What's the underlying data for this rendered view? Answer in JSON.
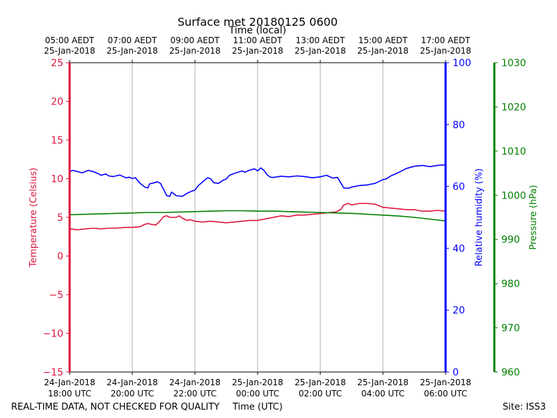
{
  "chart_data": {
    "type": "line",
    "title": "Surface met 20180125 0600",
    "top_xlabel": "Time (local)",
    "xlabel": "Time (UTC)",
    "x_range_hours": [
      0,
      12
    ],
    "top_ticks": [
      {
        "h": 0,
        "l1": "05:00 AEDT",
        "l2": "25-Jan-2018"
      },
      {
        "h": 2,
        "l1": "07:00 AEDT",
        "l2": "25-Jan-2018"
      },
      {
        "h": 4,
        "l1": "09:00 AEDT",
        "l2": "25-Jan-2018"
      },
      {
        "h": 6,
        "l1": "11:00 AEDT",
        "l2": "25-Jan-2018"
      },
      {
        "h": 8,
        "l1": "13:00 AEDT",
        "l2": "25-Jan-2018"
      },
      {
        "h": 10,
        "l1": "15:00 AEDT",
        "l2": "25-Jan-2018"
      },
      {
        "h": 12,
        "l1": "17:00 AEDT",
        "l2": "25-Jan-2018"
      }
    ],
    "bottom_ticks": [
      {
        "h": 0,
        "l1": "24-Jan-2018",
        "l2": "18:00 UTC"
      },
      {
        "h": 2,
        "l1": "24-Jan-2018",
        "l2": "20:00 UTC"
      },
      {
        "h": 4,
        "l1": "24-Jan-2018",
        "l2": "22:00 UTC"
      },
      {
        "h": 6,
        "l1": "25-Jan-2018",
        "l2": "00:00 UTC"
      },
      {
        "h": 8,
        "l1": "25-Jan-2018",
        "l2": "02:00 UTC"
      },
      {
        "h": 10,
        "l1": "25-Jan-2018",
        "l2": "04:00 UTC"
      },
      {
        "h": 12,
        "l1": "25-Jan-2018",
        "l2": "06:00 UTC"
      }
    ],
    "grid": "vertical",
    "axes": {
      "temperature": {
        "label": "Temperature (Celsius)",
        "min": -15,
        "max": 25,
        "ticks": [
          -15,
          -10,
          -5,
          0,
          5,
          10,
          15,
          20,
          25
        ],
        "tick_labels": [
          "−15",
          "−10",
          "−5",
          "0",
          "5",
          "10",
          "15",
          "20",
          "25"
        ],
        "color": "#dc143c",
        "side": "left"
      },
      "humidity": {
        "label": "Relative humidity (%)",
        "min": 0,
        "max": 100,
        "ticks": [
          0,
          20,
          40,
          60,
          80,
          100
        ],
        "tick_labels": [
          "0",
          "20",
          "40",
          "60",
          "80",
          "100"
        ],
        "color": "#0000ff",
        "side": "right"
      },
      "pressure": {
        "label": "Pressure (hPa)",
        "min": 960,
        "max": 1030,
        "ticks": [
          960,
          970,
          980,
          990,
          1000,
          1010,
          1020,
          1030
        ],
        "tick_labels": [
          "960",
          "970",
          "980",
          "990",
          "1000",
          "1010",
          "1020",
          "1030"
        ],
        "color": "#008000",
        "side": "far-right"
      }
    },
    "series": [
      {
        "key": "temperature",
        "color": "#dc143c",
        "points": [
          [
            0,
            3.5
          ],
          [
            0.25,
            3.4
          ],
          [
            0.5,
            3.5
          ],
          [
            0.75,
            3.6
          ],
          [
            1.0,
            3.5
          ],
          [
            1.25,
            3.6
          ],
          [
            1.5,
            3.6
          ],
          [
            1.75,
            3.7
          ],
          [
            2.0,
            3.7
          ],
          [
            2.25,
            3.8
          ],
          [
            2.4,
            4.1
          ],
          [
            2.5,
            4.2
          ],
          [
            2.6,
            4.1
          ],
          [
            2.75,
            4.0
          ],
          [
            2.9,
            4.6
          ],
          [
            3.0,
            5.1
          ],
          [
            3.1,
            5.2
          ],
          [
            3.2,
            5.0
          ],
          [
            3.4,
            5.0
          ],
          [
            3.5,
            5.2
          ],
          [
            3.6,
            4.9
          ],
          [
            3.75,
            4.6
          ],
          [
            3.85,
            4.7
          ],
          [
            4.0,
            4.5
          ],
          [
            4.25,
            4.4
          ],
          [
            4.5,
            4.5
          ],
          [
            4.75,
            4.4
          ],
          [
            5.0,
            4.3
          ],
          [
            5.25,
            4.4
          ],
          [
            5.5,
            4.5
          ],
          [
            5.75,
            4.6
          ],
          [
            6.0,
            4.6
          ],
          [
            6.25,
            4.8
          ],
          [
            6.5,
            5.0
          ],
          [
            6.75,
            5.2
          ],
          [
            7.0,
            5.1
          ],
          [
            7.25,
            5.3
          ],
          [
            7.5,
            5.3
          ],
          [
            7.75,
            5.4
          ],
          [
            8.0,
            5.5
          ],
          [
            8.25,
            5.6
          ],
          [
            8.5,
            5.7
          ],
          [
            8.65,
            6.0
          ],
          [
            8.75,
            6.6
          ],
          [
            8.9,
            6.8
          ],
          [
            9.0,
            6.6
          ],
          [
            9.25,
            6.8
          ],
          [
            9.5,
            6.8
          ],
          [
            9.75,
            6.7
          ],
          [
            10.0,
            6.3
          ],
          [
            10.25,
            6.2
          ],
          [
            10.5,
            6.1
          ],
          [
            10.75,
            6.0
          ],
          [
            11.0,
            6.0
          ],
          [
            11.25,
            5.8
          ],
          [
            11.5,
            5.8
          ],
          [
            11.75,
            5.9
          ],
          [
            12.0,
            5.8
          ]
        ]
      },
      {
        "key": "humidity",
        "color": "#0000ff",
        "points": [
          [
            0,
            64.8
          ],
          [
            0.1,
            65.2
          ],
          [
            0.25,
            64.8
          ],
          [
            0.4,
            64.4
          ],
          [
            0.5,
            64.8
          ],
          [
            0.6,
            65.2
          ],
          [
            0.75,
            64.8
          ],
          [
            0.9,
            64.2
          ],
          [
            1.0,
            63.6
          ],
          [
            1.15,
            64.0
          ],
          [
            1.25,
            63.4
          ],
          [
            1.4,
            63.2
          ],
          [
            1.6,
            63.7
          ],
          [
            1.8,
            62.8
          ],
          [
            1.9,
            63.0
          ],
          [
            2.0,
            62.6
          ],
          [
            2.1,
            62.8
          ],
          [
            2.25,
            61.0
          ],
          [
            2.4,
            59.8
          ],
          [
            2.5,
            59.5
          ],
          [
            2.55,
            60.8
          ],
          [
            2.7,
            61.2
          ],
          [
            2.8,
            61.5
          ],
          [
            2.9,
            61.0
          ],
          [
            3.0,
            59.0
          ],
          [
            3.1,
            57.0
          ],
          [
            3.2,
            56.8
          ],
          [
            3.25,
            58.2
          ],
          [
            3.4,
            57.0
          ],
          [
            3.6,
            56.8
          ],
          [
            3.75,
            57.8
          ],
          [
            3.9,
            58.5
          ],
          [
            4.0,
            58.8
          ],
          [
            4.1,
            60.2
          ],
          [
            4.25,
            61.5
          ],
          [
            4.4,
            62.8
          ],
          [
            4.5,
            62.5
          ],
          [
            4.6,
            61.2
          ],
          [
            4.75,
            61.0
          ],
          [
            4.9,
            62.0
          ],
          [
            5.0,
            62.4
          ],
          [
            5.1,
            63.6
          ],
          [
            5.25,
            64.2
          ],
          [
            5.5,
            65.0
          ],
          [
            5.6,
            64.6
          ],
          [
            5.75,
            65.3
          ],
          [
            5.9,
            65.7
          ],
          [
            6.0,
            65.0
          ],
          [
            6.1,
            66.0
          ],
          [
            6.2,
            65.2
          ],
          [
            6.3,
            63.8
          ],
          [
            6.4,
            63.0
          ],
          [
            6.5,
            62.9
          ],
          [
            6.75,
            63.3
          ],
          [
            7.0,
            63.1
          ],
          [
            7.25,
            63.4
          ],
          [
            7.5,
            63.2
          ],
          [
            7.75,
            62.8
          ],
          [
            8.0,
            63.1
          ],
          [
            8.2,
            63.6
          ],
          [
            8.4,
            62.7
          ],
          [
            8.55,
            62.9
          ],
          [
            8.65,
            61.2
          ],
          [
            8.75,
            59.5
          ],
          [
            8.9,
            59.4
          ],
          [
            9.0,
            59.8
          ],
          [
            9.25,
            60.3
          ],
          [
            9.5,
            60.5
          ],
          [
            9.75,
            61.0
          ],
          [
            10.0,
            62.2
          ],
          [
            10.1,
            62.4
          ],
          [
            10.25,
            63.4
          ],
          [
            10.5,
            64.5
          ],
          [
            10.75,
            65.8
          ],
          [
            11.0,
            66.5
          ],
          [
            11.25,
            66.8
          ],
          [
            11.5,
            66.4
          ],
          [
            11.75,
            66.8
          ],
          [
            12.0,
            67.0
          ]
        ]
      },
      {
        "key": "pressure",
        "color": "#008000",
        "points": [
          [
            0,
            995.6
          ],
          [
            0.5,
            995.7
          ],
          [
            1.0,
            995.8
          ],
          [
            1.5,
            995.9
          ],
          [
            2.0,
            996.0
          ],
          [
            2.5,
            996.1
          ],
          [
            3.0,
            996.1
          ],
          [
            3.5,
            996.2
          ],
          [
            4.0,
            996.3
          ],
          [
            4.5,
            996.4
          ],
          [
            5.0,
            996.5
          ],
          [
            5.5,
            996.5
          ],
          [
            6.0,
            996.4
          ],
          [
            6.5,
            996.4
          ],
          [
            7.0,
            996.3
          ],
          [
            7.5,
            996.2
          ],
          [
            8.0,
            996.1
          ],
          [
            8.5,
            996.0
          ],
          [
            9.0,
            995.9
          ],
          [
            9.5,
            995.7
          ],
          [
            10.0,
            995.5
          ],
          [
            10.5,
            995.3
          ],
          [
            11.0,
            995.0
          ],
          [
            11.5,
            994.6
          ],
          [
            12.0,
            994.2
          ]
        ]
      }
    ]
  },
  "footer": {
    "left_note": "REAL-TIME DATA, NOT CHECKED FOR QUALITY",
    "site": "Site: ISS3"
  }
}
